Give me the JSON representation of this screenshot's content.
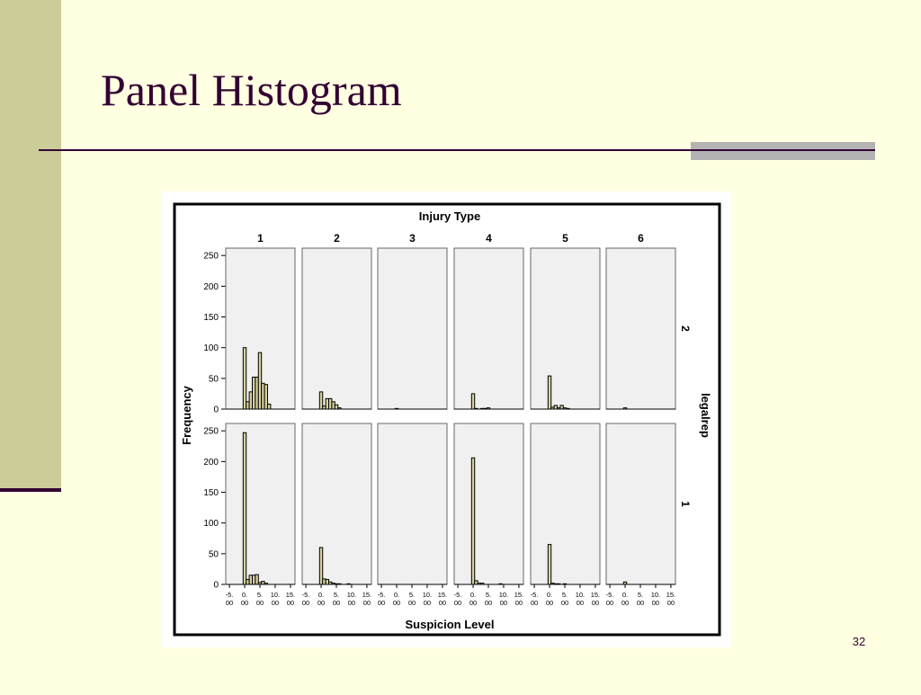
{
  "slide": {
    "title": "Panel Histogram",
    "page_number": "32"
  },
  "chart_data": {
    "type": "histogram",
    "title": "Injury Type",
    "xlabel": "Suspicion Level",
    "ylabel": "Frequency",
    "row_title": "legalrep",
    "columns": [
      "1",
      "2",
      "3",
      "4",
      "5",
      "6"
    ],
    "rows": [
      "2",
      "1"
    ],
    "bins": [
      -0.5,
      0.5,
      1.5,
      2.5,
      3.5,
      4.5,
      5.5,
      6.5,
      7.5,
      8.5,
      9.5,
      10.5
    ],
    "panels": [
      [
        [
          100,
          12,
          28,
          52,
          52,
          92,
          42,
          40,
          8,
          0,
          0
        ],
        [
          28,
          5,
          17,
          17,
          12,
          7,
          2,
          0,
          0,
          0,
          0
        ],
        [
          1,
          0,
          0,
          0,
          0,
          0,
          0,
          0,
          0,
          0,
          0
        ],
        [
          25,
          1,
          0,
          1,
          1,
          2,
          0,
          0,
          0,
          0,
          0
        ],
        [
          54,
          3,
          6,
          2,
          6,
          2,
          1,
          0,
          0,
          0,
          0
        ],
        [
          2,
          0,
          0,
          0,
          0,
          0,
          0,
          0,
          0,
          0,
          0
        ]
      ],
      [
        [
          247,
          8,
          15,
          15,
          16,
          3,
          5,
          2,
          0,
          0,
          0
        ],
        [
          60,
          9,
          8,
          4,
          2,
          1,
          1,
          0,
          0,
          1,
          0
        ],
        [
          0,
          0,
          0,
          0,
          0,
          0,
          0,
          0,
          0,
          0,
          0
        ],
        [
          206,
          6,
          2,
          2,
          0,
          0,
          0,
          0,
          0,
          1,
          0
        ],
        [
          65,
          2,
          1,
          1,
          0,
          1,
          0,
          0,
          0,
          0,
          0
        ],
        [
          4,
          0,
          0,
          0,
          0,
          0,
          0,
          0,
          0,
          0,
          0
        ]
      ]
    ],
    "xlim": [
      -6.2,
      16.5
    ],
    "ylim": [
      0,
      262
    ],
    "xticks": [
      {
        "value": -5,
        "label": "-5.00"
      },
      {
        "value": 0,
        "label": "0.00"
      },
      {
        "value": 5,
        "label": "5.00"
      },
      {
        "value": 10,
        "label": "10.00"
      },
      {
        "value": 15,
        "label": "15.00"
      }
    ],
    "yticks": [
      0,
      50,
      100,
      150,
      200,
      250
    ],
    "color": "#d8d2a0"
  }
}
